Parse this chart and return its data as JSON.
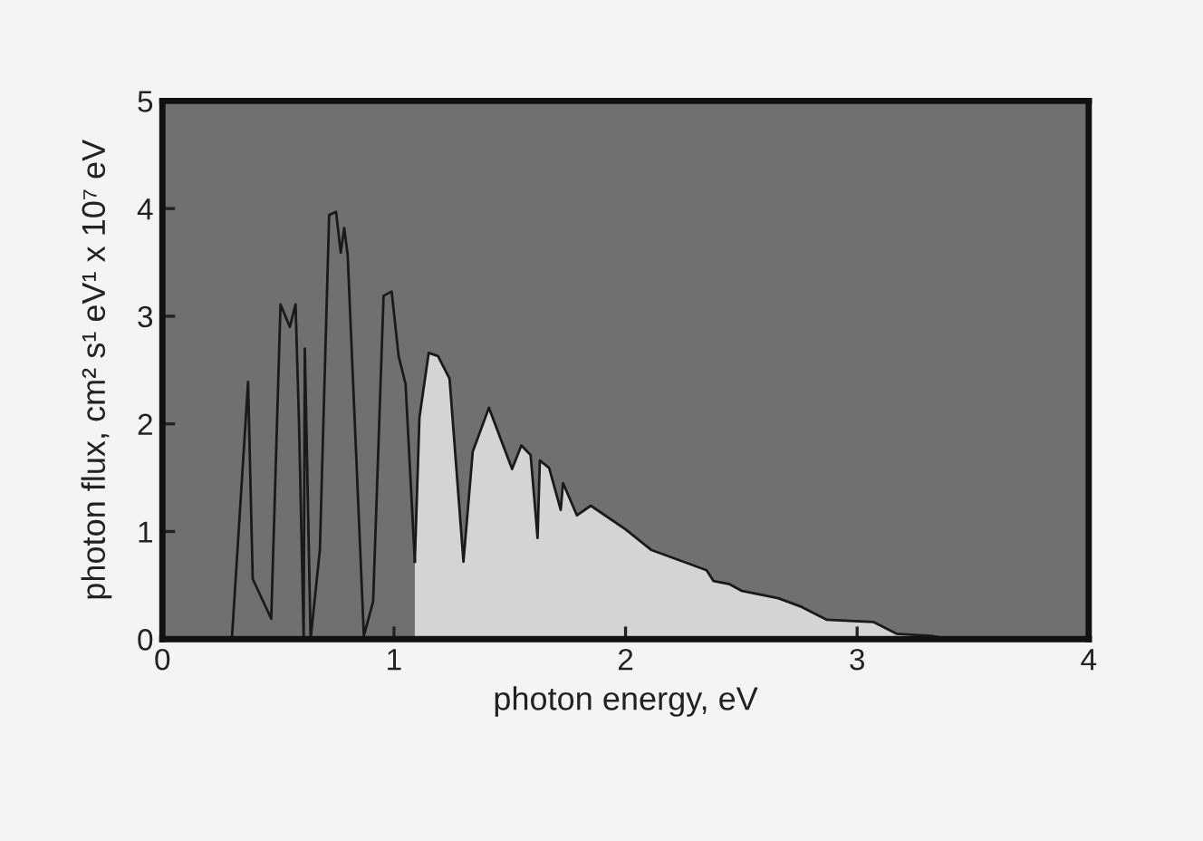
{
  "chart_data": {
    "type": "line",
    "xlabel": "photon energy, eV",
    "ylabel": "photon flux, cm² s¹ eV¹ x 10⁷ eV",
    "xlim": [
      0,
      4
    ],
    "ylim": [
      0,
      5
    ],
    "xticks": [
      0,
      1,
      2,
      3,
      4
    ],
    "yticks": [
      0,
      1,
      2,
      3,
      4,
      5
    ],
    "grid": false,
    "legend": false,
    "marker": "none",
    "line_style": "solid",
    "series": [
      {
        "color": "#1a1a1a",
        "x": [
          0.3,
          0.37,
          0.39,
          0.47,
          0.51,
          0.55,
          0.575,
          0.59,
          0.61,
          0.615,
          0.64,
          0.68,
          0.72,
          0.75,
          0.77,
          0.785,
          0.8,
          0.87,
          0.91,
          0.955,
          0.99,
          1.02,
          1.05,
          1.09
        ],
        "values": [
          0,
          2.39,
          0.56,
          0.19,
          3.11,
          2.9,
          3.11,
          2.0,
          0.03,
          2.7,
          0,
          0.83,
          3.94,
          3.97,
          3.59,
          3.82,
          3.57,
          0.03,
          0.35,
          3.19,
          3.23,
          2.63,
          2.37,
          0.72
        ]
      },
      {
        "type": "area",
        "color": "#d4d4d4",
        "x": [
          1.09,
          1.11,
          1.15,
          1.19,
          1.24,
          1.3,
          1.34,
          1.41,
          1.51,
          1.55,
          1.59,
          1.61,
          1.62,
          1.63,
          1.67,
          1.72,
          1.73,
          1.79,
          1.85,
          2.0,
          2.11,
          2.35,
          2.38,
          2.45,
          2.5,
          2.66,
          2.76,
          2.87,
          3.07,
          3.17,
          3.32,
          3.4
        ],
        "values": [
          0.72,
          2.06,
          2.66,
          2.63,
          2.42,
          0.72,
          1.74,
          2.15,
          1.58,
          1.8,
          1.71,
          1.2,
          0.94,
          1.66,
          1.59,
          1.2,
          1.45,
          1.15,
          1.24,
          1.02,
          0.83,
          0.64,
          0.54,
          0.51,
          0.45,
          0.38,
          0.3,
          0.18,
          0.16,
          0.05,
          0.03,
          0
        ]
      }
    ]
  }
}
